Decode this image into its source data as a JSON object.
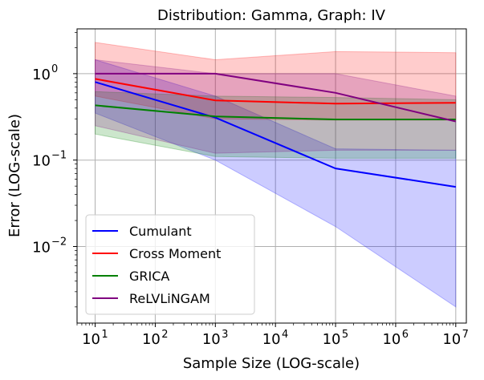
{
  "chart_data": {
    "type": "line",
    "title": "Distribution: Gamma, Graph: IV",
    "xlabel": "Sample Size (LOG-scale)",
    "ylabel": "Error (LOG-scale)",
    "xscale": "log",
    "yscale": "log",
    "xlim": [
      5,
      15000000
    ],
    "ylim": [
      0.0013,
      3.3
    ],
    "grid": true,
    "legend_position": "lower-left",
    "x_ticks": [
      {
        "base": "10",
        "exp": "1",
        "value": 10
      },
      {
        "base": "10",
        "exp": "2",
        "value": 100
      },
      {
        "base": "10",
        "exp": "3",
        "value": 1000
      },
      {
        "base": "10",
        "exp": "4",
        "value": 10000
      },
      {
        "base": "10",
        "exp": "5",
        "value": 100000
      },
      {
        "base": "10",
        "exp": "6",
        "value": 1000000
      },
      {
        "base": "10",
        "exp": "7",
        "value": 10000000
      }
    ],
    "y_ticks": [
      {
        "base": "10",
        "exp": "−2",
        "value": 0.01
      },
      {
        "base": "10",
        "exp": "−1",
        "value": 0.1
      },
      {
        "base": "10",
        "exp": "0",
        "value": 1
      }
    ],
    "series": [
      {
        "name": "Cumulant",
        "color": "#0000ff",
        "x": [
          10,
          1000,
          100000,
          10000000
        ],
        "y": [
          0.8,
          0.31,
          0.08,
          0.049
        ],
        "lower": [
          0.35,
          0.1,
          0.017,
          0.002
        ],
        "upper": [
          1.45,
          0.55,
          0.135,
          0.13
        ]
      },
      {
        "name": "Cross Moment",
        "color": "#ff0000",
        "x": [
          10,
          1000,
          100000,
          10000000
        ],
        "y": [
          0.87,
          0.49,
          0.45,
          0.46
        ],
        "lower": [
          0.55,
          0.3,
          0.29,
          0.29
        ],
        "upper": [
          2.3,
          1.45,
          1.8,
          1.75
        ]
      },
      {
        "name": "GRICA",
        "color": "#008000",
        "x": [
          10,
          1000,
          100000,
          10000000
        ],
        "y": [
          0.43,
          0.32,
          0.295,
          0.295
        ],
        "lower": [
          0.2,
          0.11,
          0.105,
          0.105
        ],
        "upper": [
          0.62,
          0.55,
          0.53,
          0.5
        ]
      },
      {
        "name": "ReLVLiNGAM",
        "color": "#800080",
        "x": [
          10,
          1000,
          100000,
          10000000
        ],
        "y": [
          1.0,
          1.0,
          0.6,
          0.28
        ],
        "lower": [
          0.25,
          0.12,
          0.13,
          0.13
        ],
        "upper": [
          1.45,
          1.0,
          1.0,
          0.55
        ]
      }
    ]
  }
}
